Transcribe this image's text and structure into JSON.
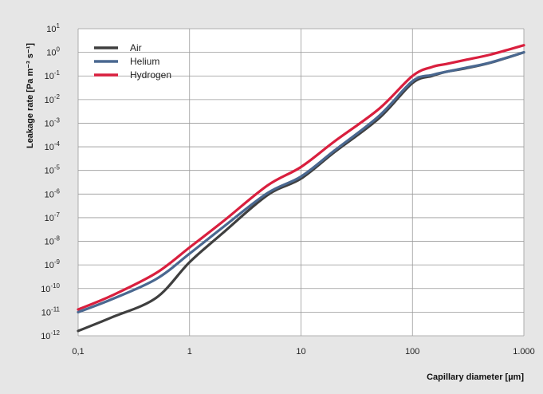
{
  "chart_data": {
    "type": "line",
    "title": "",
    "xlabel": "Capillary diameter [µm]",
    "ylabel": "Leakage rate [Pa m⁻³ s⁻¹]",
    "x_scale": "log",
    "y_scale": "log",
    "xlim": [
      0.1,
      1000
    ],
    "ylim": [
      1e-12,
      10
    ],
    "grid": true,
    "legend_position": "top-left",
    "x_ticks": [
      {
        "value": 0.1,
        "label": "0,1"
      },
      {
        "value": 1,
        "label": "1"
      },
      {
        "value": 10,
        "label": "10"
      },
      {
        "value": 100,
        "label": "100"
      },
      {
        "value": 1000,
        "label": "1.000"
      }
    ],
    "y_ticks": [
      {
        "value": 10.0,
        "base": "10",
        "exp": "1"
      },
      {
        "value": 1.0,
        "base": "10",
        "exp": "0"
      },
      {
        "value": 0.1,
        "base": "10",
        "exp": "-1"
      },
      {
        "value": 0.01,
        "base": "10",
        "exp": "-2"
      },
      {
        "value": 0.001,
        "base": "10",
        "exp": "-3"
      },
      {
        "value": 0.0001,
        "base": "10",
        "exp": "-4"
      },
      {
        "value": 1e-05,
        "base": "10",
        "exp": "-5"
      },
      {
        "value": 1e-06,
        "base": "10",
        "exp": "-6"
      },
      {
        "value": 1e-07,
        "base": "10",
        "exp": "-7"
      },
      {
        "value": 1e-08,
        "base": "10",
        "exp": "-8"
      },
      {
        "value": 1e-09,
        "base": "10",
        "exp": "-9"
      },
      {
        "value": 1e-10,
        "base": "10",
        "exp": "-10"
      },
      {
        "value": 1e-11,
        "base": "10",
        "exp": "-11"
      },
      {
        "value": 1e-12,
        "base": "10",
        "exp": "-12"
      }
    ],
    "series": [
      {
        "name": "Air",
        "color": "#3f3f3f",
        "points": [
          [
            0.1,
            1.6e-12
          ],
          [
            0.2,
            6e-12
          ],
          [
            0.5,
            4e-11
          ],
          [
            1,
            1.3e-09
          ],
          [
            2,
            2.3e-08
          ],
          [
            5,
            9e-07
          ],
          [
            10,
            4.5e-06
          ],
          [
            20,
            6e-05
          ],
          [
            50,
            0.0016
          ],
          [
            100,
            0.05
          ],
          [
            150,
            0.1
          ],
          [
            200,
            0.15
          ],
          [
            300,
            0.21
          ],
          [
            500,
            0.36
          ],
          [
            1000,
            1.0
          ]
        ]
      },
      {
        "name": "Helium",
        "color": "#4a6890",
        "points": [
          [
            0.1,
            1e-11
          ],
          [
            0.2,
            3.5e-11
          ],
          [
            0.5,
            2.5e-10
          ],
          [
            1,
            3e-09
          ],
          [
            2,
            4e-08
          ],
          [
            5,
            1.1e-06
          ],
          [
            10,
            5.5e-06
          ],
          [
            20,
            7e-05
          ],
          [
            50,
            0.002
          ],
          [
            100,
            0.06
          ],
          [
            150,
            0.11
          ],
          [
            200,
            0.15
          ],
          [
            300,
            0.22
          ],
          [
            500,
            0.37
          ],
          [
            1000,
            1.0
          ]
        ]
      },
      {
        "name": "Hydrogen",
        "color": "#d91f3e",
        "points": [
          [
            0.1,
            1.3e-11
          ],
          [
            0.2,
            5e-11
          ],
          [
            0.5,
            4.5e-10
          ],
          [
            1,
            5.5e-09
          ],
          [
            2,
            7e-08
          ],
          [
            5,
            2.3e-06
          ],
          [
            10,
            1.4e-05
          ],
          [
            20,
            0.00017
          ],
          [
            50,
            0.004
          ],
          [
            100,
            0.1
          ],
          [
            150,
            0.24
          ],
          [
            200,
            0.32
          ],
          [
            300,
            0.48
          ],
          [
            500,
            0.8
          ],
          [
            1000,
            2.0
          ]
        ]
      }
    ]
  }
}
